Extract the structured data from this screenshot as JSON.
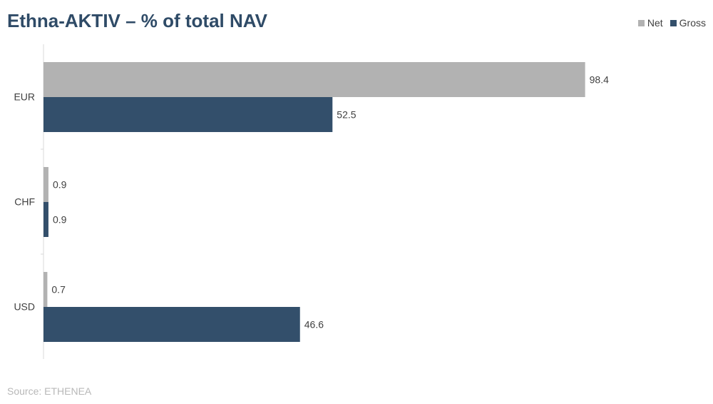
{
  "header": {
    "title": "Ethna-AKTIV – % of total NAV"
  },
  "legend": {
    "items": [
      {
        "label": "Net",
        "color": "#b2b2b2"
      },
      {
        "label": "Gross",
        "color": "#334f6b"
      }
    ]
  },
  "footer": {
    "source": "Source: ETHENEA"
  },
  "chart_data": {
    "type": "bar",
    "orientation": "horizontal",
    "title": "Ethna-AKTIV – % of total NAV",
    "categories": [
      "EUR",
      "CHF",
      "USD"
    ],
    "series": [
      {
        "name": "Net",
        "color": "#b2b2b2",
        "values": [
          98.4,
          0.9,
          0.7
        ]
      },
      {
        "name": "Gross",
        "color": "#334f6b",
        "values": [
          52.5,
          0.9,
          46.6
        ]
      }
    ],
    "xlim": [
      0,
      100
    ],
    "grid": false,
    "legend_position": "top-right",
    "data_labels": true
  }
}
